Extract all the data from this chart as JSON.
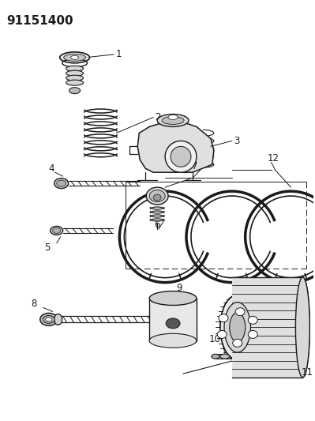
{
  "title_code": "91151400",
  "background_color": "#ffffff",
  "line_color": "#1a1a1a",
  "figsize": [
    3.99,
    5.33
  ],
  "dpi": 100,
  "label_fontsize": 8.5,
  "title_fontsize": 11
}
